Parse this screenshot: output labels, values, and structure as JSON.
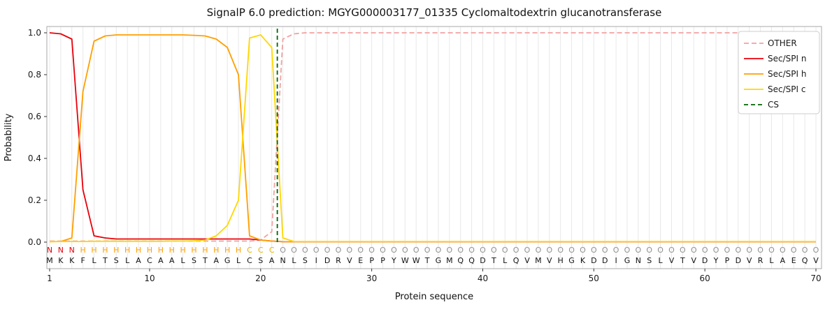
{
  "chart_data": {
    "type": "line",
    "title": "SignalP 6.0 prediction: MGYG000003177_01335 Cyclomaltodextrin glucanotransferase",
    "xlabel": "Protein sequence",
    "ylabel": "Probability",
    "x_ticks": [
      1,
      10,
      20,
      30,
      40,
      50,
      60,
      70
    ],
    "y_ticks": [
      0.0,
      0.2,
      0.4,
      0.6,
      0.8,
      1.0
    ],
    "ylim": [
      0,
      1.05
    ],
    "grid": "vertical-per-residue",
    "legend_position": "upper right",
    "legend": [
      "OTHER",
      "Sec/SPI n",
      "Sec/SPI h",
      "Sec/SPI c",
      "CS"
    ],
    "sequence": "MKKFLTSLACAALSTAGLCSANLSIDRVEPPYWWTGMQQDTLQVMVHGKDDIGNSLVTVDYPDVRLAEQV",
    "region_labels": "NNNHHHHHHHHHHHHHHHCCCOOOOOOOOOOOOOOOOOOOOOOOOOOOOOOOOOOOOOOOOOOOOOOOOO",
    "region_colors": {
      "N": "#e8000b",
      "H": "#ff9f00",
      "C": "#e4b500",
      "O": "#909090"
    },
    "colors": {
      "grid": "#e8e8e8",
      "frame": "#aaaaaa",
      "tick": "#333333",
      "text": "#1a1a1a"
    },
    "cs": {
      "name": "CS",
      "color": "#006400",
      "dash": [
        6,
        4
      ],
      "position": 21.5
    },
    "series": [
      {
        "name": "OTHER",
        "color": "#f2a1a1",
        "dash": [
          7,
          4
        ],
        "values": [
          0.005,
          0.005,
          0.005,
          0.005,
          0.005,
          0.005,
          0.005,
          0.005,
          0.005,
          0.005,
          0.005,
          0.005,
          0.005,
          0.005,
          0.005,
          0.005,
          0.005,
          0.005,
          0.005,
          0.01,
          0.05,
          0.97,
          0.995,
          1.0,
          1.0,
          1.0,
          1.0,
          1.0,
          1.0,
          1.0,
          1.0,
          1.0,
          1.0,
          1.0,
          1.0,
          1.0,
          1.0,
          1.0,
          1.0,
          1.0,
          1.0,
          1.0,
          1.0,
          1.0,
          1.0,
          1.0,
          1.0,
          1.0,
          1.0,
          1.0,
          1.0,
          1.0,
          1.0,
          1.0,
          1.0,
          1.0,
          1.0,
          1.0,
          1.0,
          1.0,
          1.0,
          1.0,
          1.0,
          1.0,
          1.0,
          1.0,
          1.0,
          1.0,
          1.0,
          1.0
        ]
      },
      {
        "name": "Sec/SPI n",
        "color": "#e8000b",
        "dash": null,
        "values": [
          1.0,
          0.995,
          0.97,
          0.25,
          0.03,
          0.02,
          0.015,
          0.015,
          0.015,
          0.015,
          0.015,
          0.015,
          0.015,
          0.015,
          0.015,
          0.015,
          0.015,
          0.015,
          0.015,
          0.01,
          0.005,
          0.002,
          0.002,
          0.002,
          0.002,
          0.002,
          0.002,
          0.002,
          0.002,
          0.002,
          0.002,
          0.002,
          0.002,
          0.002,
          0.002,
          0.002,
          0.002,
          0.002,
          0.002,
          0.002,
          0.002,
          0.002,
          0.002,
          0.002,
          0.002,
          0.002,
          0.002,
          0.002,
          0.002,
          0.002,
          0.002,
          0.002,
          0.002,
          0.002,
          0.002,
          0.002,
          0.002,
          0.002,
          0.002,
          0.002,
          0.002,
          0.002,
          0.002,
          0.002,
          0.002,
          0.002,
          0.002,
          0.002,
          0.002,
          0.002
        ]
      },
      {
        "name": "Sec/SPI h",
        "color": "#ff9f00",
        "dash": null,
        "values": [
          0.002,
          0.003,
          0.02,
          0.72,
          0.96,
          0.985,
          0.99,
          0.99,
          0.99,
          0.99,
          0.99,
          0.99,
          0.99,
          0.988,
          0.985,
          0.97,
          0.93,
          0.8,
          0.03,
          0.01,
          0.005,
          0.002,
          0.002,
          0.002,
          0.002,
          0.002,
          0.002,
          0.002,
          0.002,
          0.002,
          0.002,
          0.002,
          0.002,
          0.002,
          0.002,
          0.002,
          0.002,
          0.002,
          0.002,
          0.002,
          0.002,
          0.002,
          0.002,
          0.002,
          0.002,
          0.002,
          0.002,
          0.002,
          0.002,
          0.002,
          0.002,
          0.002,
          0.002,
          0.002,
          0.002,
          0.002,
          0.002,
          0.002,
          0.002,
          0.002,
          0.002,
          0.002,
          0.002,
          0.002,
          0.002,
          0.002,
          0.002,
          0.002,
          0.002,
          0.002
        ]
      },
      {
        "name": "Sec/SPI c",
        "color": "#ffd700",
        "dash": null,
        "values": [
          0.003,
          0.003,
          0.003,
          0.003,
          0.004,
          0.004,
          0.004,
          0.004,
          0.004,
          0.004,
          0.004,
          0.005,
          0.005,
          0.006,
          0.01,
          0.03,
          0.08,
          0.2,
          0.975,
          0.99,
          0.93,
          0.02,
          0.003,
          0.003,
          0.003,
          0.003,
          0.003,
          0.003,
          0.003,
          0.003,
          0.003,
          0.003,
          0.003,
          0.003,
          0.003,
          0.003,
          0.003,
          0.003,
          0.003,
          0.003,
          0.003,
          0.003,
          0.003,
          0.003,
          0.003,
          0.003,
          0.003,
          0.003,
          0.003,
          0.003,
          0.003,
          0.003,
          0.003,
          0.003,
          0.003,
          0.003,
          0.003,
          0.003,
          0.003,
          0.003,
          0.003,
          0.003,
          0.003,
          0.003,
          0.003,
          0.003,
          0.003,
          0.003,
          0.003,
          0.003
        ]
      }
    ]
  }
}
